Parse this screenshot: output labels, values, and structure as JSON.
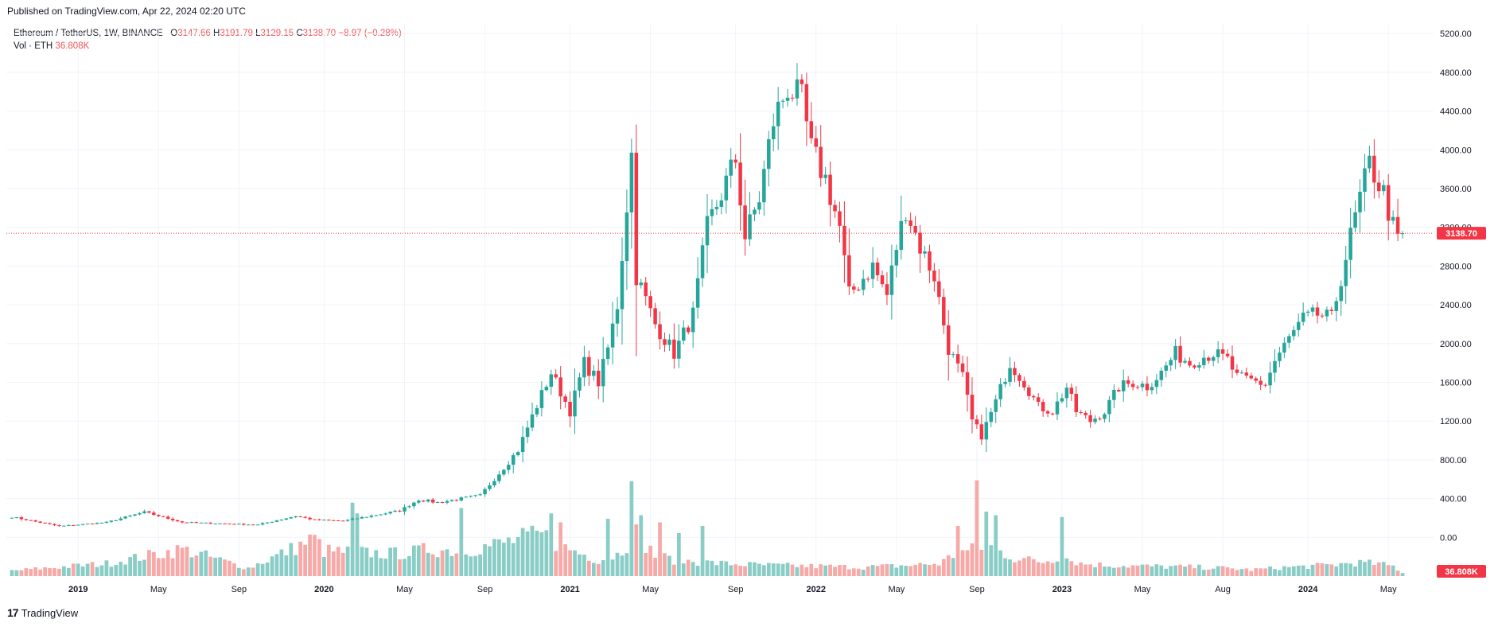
{
  "header": {
    "published": "Published on TradingView.com, Apr 22, 2024 02:20 UTC"
  },
  "legend": {
    "symbol": "Ethereum / TetherUS, 1W, BINANCE",
    "o_label": "O",
    "o_value": "3147.66",
    "h_label": "H",
    "h_value": "3191.79",
    "l_label": "L",
    "l_value": "3129.15",
    "c_label": "C",
    "c_value": "3138.70",
    "change": "−8.97 (−0.28%)",
    "vol_label": "Vol · ETH",
    "vol_value": "36.808K"
  },
  "brand": {
    "logo": "17",
    "name": "TradingView"
  },
  "colors": {
    "up": "#26a69a",
    "down": "#f23645",
    "vol_up": "#89cdc6",
    "vol_down": "#f7a9a7",
    "grid": "#f0f3fa",
    "axis_text": "#131722",
    "price_line": "#f23645"
  },
  "chart_data": {
    "type": "candlestick",
    "y_axis_ticks": [
      "5200.00",
      "4800.00",
      "4400.00",
      "4000.00",
      "3600.00",
      "3200.00",
      "2800.00",
      "2400.00",
      "2000.00",
      "1600.00",
      "1200.00",
      "800.00",
      "400.00",
      "0.00"
    ],
    "ylim": [
      -400,
      5300
    ],
    "x_axis_ticks": [
      "2019",
      "May",
      "Sep",
      "2020",
      "May",
      "Sep",
      "2021",
      "May",
      "Sep",
      "2022",
      "May",
      "Sep",
      "2023",
      "May",
      "Aug",
      "2024",
      "May"
    ],
    "last_price_label": "3138.70",
    "last_price": 3138.7,
    "volume_label": "36.808K",
    "volume_unit_max": 800,
    "anchors": [
      [
        0,
        210
      ],
      [
        10,
        115
      ],
      [
        20,
        155
      ],
      [
        28,
        260
      ],
      [
        36,
        155
      ],
      [
        52,
        130
      ],
      [
        60,
        220
      ],
      [
        64,
        180
      ],
      [
        70,
        170
      ],
      [
        82,
        275
      ],
      [
        86,
        390
      ],
      [
        90,
        360
      ],
      [
        99,
        430
      ],
      [
        104,
        720
      ],
      [
        107,
        900
      ],
      [
        110,
        1250
      ],
      [
        114,
        1700
      ],
      [
        118,
        1300
      ],
      [
        121,
        1800
      ],
      [
        124,
        1600
      ],
      [
        126,
        1950
      ],
      [
        128,
        2400
      ],
      [
        131,
        3950
      ],
      [
        132,
        2700
      ],
      [
        136,
        2200
      ],
      [
        140,
        1900
      ],
      [
        144,
        2300
      ],
      [
        147,
        3200
      ],
      [
        153,
        3900
      ],
      [
        155,
        3100
      ],
      [
        158,
        3500
      ],
      [
        161,
        4300
      ],
      [
        164,
        4650
      ],
      [
        167,
        4500
      ],
      [
        169,
        4000
      ],
      [
        172,
        3700
      ],
      [
        175,
        3200
      ],
      [
        177,
        2500
      ],
      [
        182,
        2800
      ],
      [
        185,
        2500
      ],
      [
        187,
        3000
      ],
      [
        189,
        3400
      ],
      [
        192,
        3000
      ],
      [
        195,
        2700
      ],
      [
        198,
        1950
      ],
      [
        201,
        1650
      ],
      [
        203,
        1200
      ],
      [
        205,
        1050
      ],
      [
        208,
        1400
      ],
      [
        211,
        1800
      ],
      [
        214,
        1600
      ],
      [
        217,
        1350
      ],
      [
        220,
        1300
      ],
      [
        223,
        1550
      ],
      [
        225,
        1300
      ],
      [
        228,
        1200
      ],
      [
        231,
        1300
      ],
      [
        234,
        1550
      ],
      [
        237,
        1600
      ],
      [
        240,
        1560
      ],
      [
        243,
        1700
      ],
      [
        246,
        1900
      ],
      [
        249,
        1800
      ],
      [
        251,
        1850
      ],
      [
        254,
        1900
      ],
      [
        257,
        1830
      ],
      [
        259,
        1650
      ],
      [
        262,
        1620
      ],
      [
        265,
        1580
      ],
      [
        267,
        1820
      ],
      [
        270,
        2050
      ],
      [
        273,
        2250
      ],
      [
        276,
        2300
      ],
      [
        279,
        2250
      ],
      [
        282,
        2900
      ],
      [
        285,
        3500
      ],
      [
        287,
        3850
      ],
      [
        290,
        3550
      ],
      [
        292,
        3200
      ],
      [
        293,
        3060
      ],
      [
        294,
        3140
      ]
    ],
    "volume_anchors": [
      [
        0,
        60
      ],
      [
        20,
        140
      ],
      [
        36,
        300
      ],
      [
        50,
        90
      ],
      [
        60,
        320
      ],
      [
        64,
        420
      ],
      [
        66,
        280
      ],
      [
        80,
        250
      ],
      [
        84,
        260
      ],
      [
        88,
        300
      ],
      [
        95,
        280
      ],
      [
        103,
        360
      ],
      [
        108,
        420
      ],
      [
        112,
        460
      ],
      [
        118,
        300
      ],
      [
        124,
        180
      ],
      [
        128,
        240
      ],
      [
        130,
        350
      ],
      [
        132,
        480
      ],
      [
        136,
        230
      ],
      [
        140,
        180
      ],
      [
        150,
        140
      ],
      [
        160,
        120
      ],
      [
        170,
        110
      ],
      [
        180,
        100
      ],
      [
        190,
        120
      ],
      [
        196,
        140
      ],
      [
        200,
        260
      ],
      [
        204,
        300
      ],
      [
        206,
        360
      ],
      [
        208,
        300
      ],
      [
        212,
        200
      ],
      [
        218,
        160
      ],
      [
        222,
        220
      ],
      [
        226,
        140
      ],
      [
        232,
        120
      ],
      [
        240,
        110
      ],
      [
        250,
        100
      ],
      [
        256,
        90
      ],
      [
        262,
        70
      ],
      [
        270,
        100
      ],
      [
        278,
        120
      ],
      [
        284,
        150
      ],
      [
        288,
        140
      ],
      [
        292,
        110
      ],
      [
        294,
        40
      ]
    ],
    "volume_spikes": {
      "72": 820,
      "73": 700,
      "95": 760,
      "114": 700,
      "116": 600,
      "126": 640,
      "131": 1060,
      "133": 680,
      "137": 600,
      "141": 480,
      "146": 560,
      "200": 560,
      "204": 1070,
      "206": 720,
      "208": 680,
      "222": 660
    }
  }
}
